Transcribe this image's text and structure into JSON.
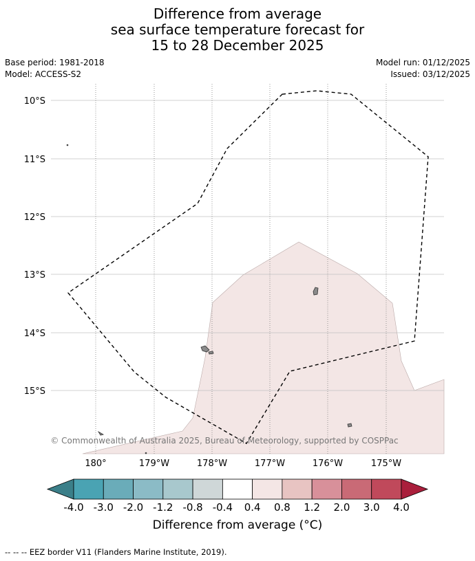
{
  "title": {
    "line1": "Difference from average",
    "line2": "sea surface temperature forecast for",
    "line3": "15 to 28 December 2025"
  },
  "meta": {
    "base_period": "Base period: 1981-2018",
    "model": "Model: ACCESS-S2",
    "model_run": "Model run: 01/12/2025",
    "issued": "Issued: 03/12/2025"
  },
  "map": {
    "lat_labels": [
      "10°S",
      "11°S",
      "12°S",
      "13°S",
      "14°S",
      "15°S"
    ],
    "lon_labels": [
      "180°",
      "179°W",
      "178°W",
      "177°W",
      "176°W",
      "175°W"
    ],
    "copyright": "© Commonwealth of Australia 2025, Bureau of Meteorology, supported by COSPPac",
    "anomaly_fill_color": "#f3e6e5",
    "border_color": "#000000"
  },
  "colorbar": {
    "ticks": [
      "-4.0",
      "-3.0",
      "-2.0",
      "-1.2",
      "-0.8",
      "-0.4",
      "0.4",
      "0.8",
      "1.2",
      "2.0",
      "3.0",
      "4.0"
    ],
    "colors": [
      "#3b7f89",
      "#4aa3b3",
      "#6aacb9",
      "#8bbbc6",
      "#a8c8cd",
      "#cfd7d8",
      "#ffffff",
      "#f4e6e5",
      "#e8c4c2",
      "#d8909a",
      "#c96a76",
      "#c0495b",
      "#aa1f3c"
    ],
    "label": "Difference from average (°C)"
  },
  "footer": "--  --  -- EEZ border V11 (Flanders Marine Institute, 2019)."
}
